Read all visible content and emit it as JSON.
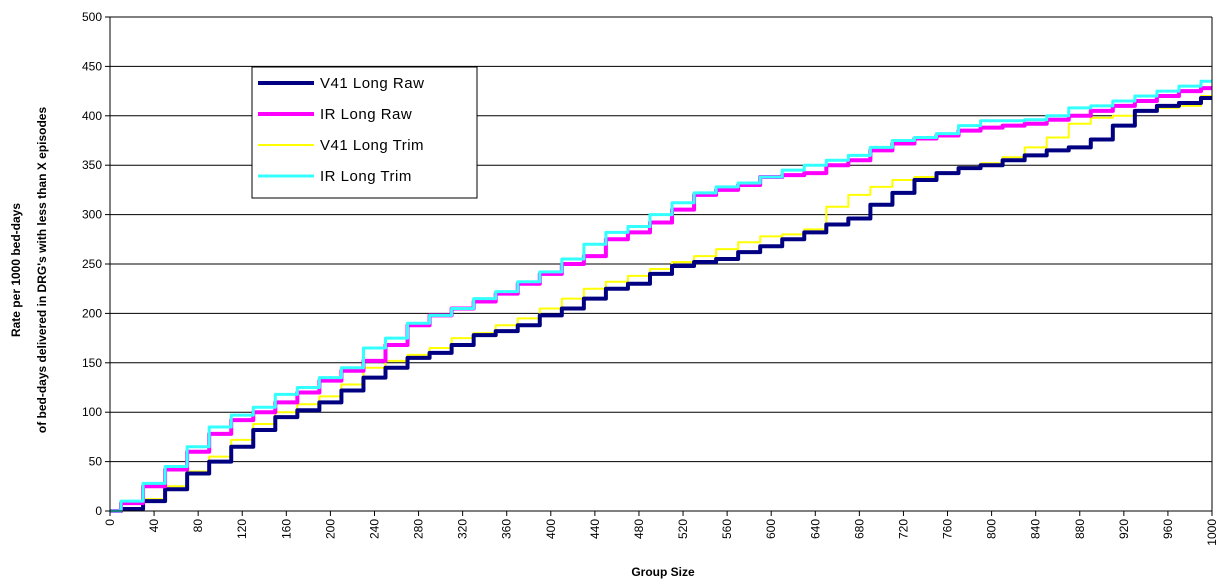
{
  "chart_data": {
    "type": "line",
    "title": "",
    "xlabel": "Group Size",
    "ylabel_lines": [
      "Rate per 1000 bed-days",
      "of bed-days delivered in DRG's with less than X episodes"
    ],
    "xlim": [
      0,
      1000
    ],
    "ylim": [
      0,
      500
    ],
    "x_ticks": [
      0,
      40,
      80,
      120,
      160,
      200,
      240,
      280,
      320,
      360,
      400,
      440,
      480,
      520,
      560,
      600,
      640,
      680,
      720,
      760,
      800,
      840,
      880,
      920,
      960,
      1000
    ],
    "y_ticks": [
      0,
      50,
      100,
      150,
      200,
      250,
      300,
      350,
      400,
      450,
      500
    ],
    "grid": "horizontal",
    "legend_position": "top-left",
    "series": [
      {
        "name": "V41 Long Raw",
        "color": "#000080",
        "x": [
          0,
          20,
          40,
          60,
          80,
          100,
          120,
          140,
          160,
          180,
          200,
          220,
          240,
          260,
          280,
          300,
          320,
          340,
          360,
          380,
          400,
          420,
          440,
          460,
          480,
          500,
          520,
          540,
          560,
          580,
          600,
          620,
          640,
          660,
          680,
          700,
          720,
          740,
          760,
          780,
          800,
          820,
          840,
          860,
          880,
          900,
          920,
          940,
          960,
          980,
          1000
        ],
        "y": [
          0,
          2,
          10,
          22,
          38,
          50,
          65,
          82,
          95,
          102,
          110,
          122,
          135,
          145,
          155,
          160,
          168,
          178,
          182,
          188,
          198,
          205,
          215,
          225,
          230,
          240,
          248,
          252,
          255,
          262,
          268,
          275,
          282,
          290,
          296,
          310,
          322,
          335,
          342,
          347,
          350,
          355,
          360,
          365,
          368,
          376,
          390,
          405,
          410,
          413,
          418
        ]
      },
      {
        "name": "IR Long Raw",
        "color": "#ff00ff",
        "x": [
          0,
          20,
          40,
          60,
          80,
          100,
          120,
          140,
          160,
          180,
          200,
          220,
          240,
          260,
          280,
          300,
          320,
          340,
          360,
          380,
          400,
          420,
          440,
          460,
          480,
          500,
          520,
          540,
          560,
          580,
          600,
          620,
          640,
          660,
          680,
          700,
          720,
          740,
          760,
          780,
          800,
          820,
          840,
          860,
          880,
          900,
          920,
          940,
          960,
          980,
          1000
        ],
        "y": [
          0,
          8,
          25,
          42,
          60,
          78,
          92,
          100,
          110,
          120,
          132,
          142,
          152,
          168,
          188,
          198,
          205,
          212,
          220,
          230,
          240,
          250,
          258,
          275,
          282,
          292,
          305,
          320,
          325,
          330,
          338,
          340,
          342,
          350,
          355,
          365,
          372,
          377,
          380,
          385,
          388,
          390,
          392,
          396,
          400,
          405,
          410,
          415,
          420,
          425,
          428
        ]
      },
      {
        "name": "V41 Long Trim",
        "color": "#ffff00",
        "x": [
          0,
          20,
          40,
          60,
          80,
          100,
          120,
          140,
          160,
          180,
          200,
          220,
          240,
          260,
          280,
          300,
          320,
          340,
          360,
          380,
          400,
          420,
          440,
          460,
          480,
          500,
          520,
          540,
          560,
          580,
          600,
          620,
          640,
          660,
          680,
          700,
          720,
          740,
          760,
          780,
          800,
          820,
          840,
          860,
          880,
          900,
          920,
          940,
          960,
          980,
          1000
        ],
        "y": [
          0,
          3,
          12,
          25,
          40,
          55,
          72,
          88,
          100,
          108,
          116,
          128,
          145,
          152,
          158,
          165,
          175,
          180,
          188,
          195,
          205,
          215,
          225,
          232,
          238,
          245,
          252,
          258,
          265,
          272,
          278,
          280,
          285,
          308,
          320,
          328,
          335,
          338,
          342,
          348,
          352,
          358,
          368,
          378,
          392,
          398,
          400,
          405,
          408,
          410,
          420
        ]
      },
      {
        "name": "IR Long Trim",
        "color": "#33ffff",
        "x": [
          0,
          20,
          40,
          60,
          80,
          100,
          120,
          140,
          160,
          180,
          200,
          220,
          240,
          260,
          280,
          300,
          320,
          340,
          360,
          380,
          400,
          420,
          440,
          460,
          480,
          500,
          520,
          540,
          560,
          580,
          600,
          620,
          640,
          660,
          680,
          700,
          720,
          740,
          760,
          780,
          800,
          820,
          840,
          860,
          880,
          900,
          920,
          940,
          960,
          980,
          1000
        ],
        "y": [
          0,
          10,
          28,
          45,
          65,
          85,
          97,
          105,
          118,
          125,
          135,
          145,
          165,
          175,
          190,
          198,
          205,
          215,
          222,
          232,
          242,
          255,
          270,
          282,
          288,
          300,
          312,
          322,
          328,
          332,
          338,
          345,
          350,
          355,
          360,
          368,
          375,
          378,
          382,
          390,
          395,
          395,
          396,
          400,
          408,
          410,
          415,
          420,
          425,
          430,
          435
        ]
      }
    ]
  }
}
